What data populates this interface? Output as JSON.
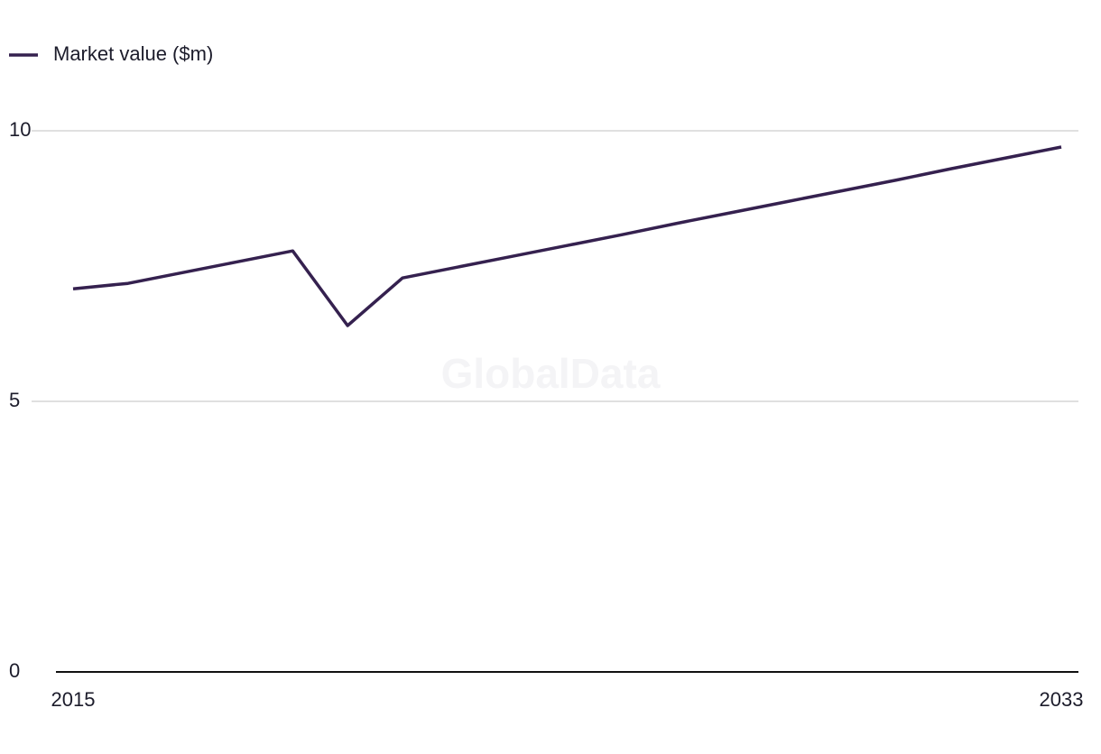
{
  "chart_data": {
    "type": "line",
    "watermark": "GlobalData",
    "x": [
      2015,
      2016,
      2017,
      2018,
      2019,
      2020,
      2021,
      2022,
      2023,
      2024,
      2025,
      2026,
      2027,
      2028,
      2029,
      2030,
      2031,
      2032,
      2033
    ],
    "series": [
      {
        "name": "Market value ($m)",
        "color": "#35214f",
        "values": [
          7.08,
          7.18,
          7.38,
          7.58,
          7.78,
          6.4,
          7.28,
          7.48,
          7.68,
          7.88,
          8.08,
          8.29,
          8.49,
          8.69,
          8.89,
          9.09,
          9.3,
          9.5,
          9.7
        ]
      }
    ],
    "xlim": [
      2015,
      2033
    ],
    "xticks": [
      2015,
      2033
    ],
    "ylim": [
      0,
      10
    ],
    "yticks": [
      0,
      5,
      10
    ],
    "grid": true,
    "legend": "top-left"
  }
}
